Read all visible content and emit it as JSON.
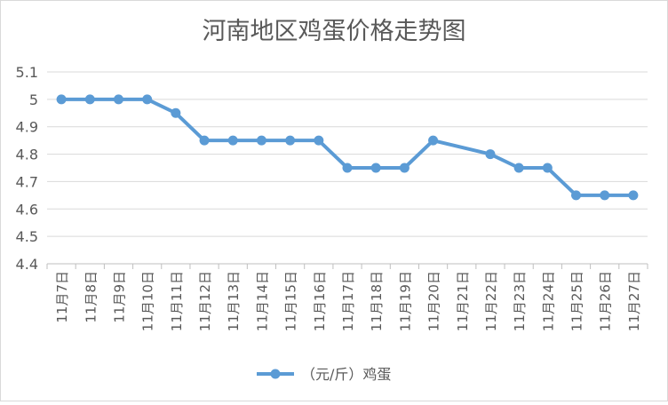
{
  "chart_data": {
    "type": "line",
    "title": "河南地区鸡蛋价格走势图",
    "xlabel": "",
    "ylabel": "",
    "categories": [
      "11月7日",
      "11月8日",
      "11月9日",
      "11月10日",
      "11月11日",
      "11月12日",
      "11月13日",
      "11月14日",
      "11月15日",
      "11月16日",
      "11月17日",
      "11月18日",
      "11月19日",
      "11月20日",
      "11月21日",
      "11月22日",
      "11月23日",
      "11月24日",
      "11月25日",
      "11月26日",
      "11月27日"
    ],
    "series": [
      {
        "name": "（元/斤）鸡蛋",
        "values": [
          5,
          5,
          5,
          5,
          4.95,
          4.85,
          4.85,
          4.85,
          4.85,
          4.85,
          4.75,
          4.75,
          4.75,
          4.85,
          null,
          4.8,
          4.75,
          4.75,
          4.65,
          4.65,
          4.65
        ]
      }
    ],
    "ylim": [
      4.4,
      5.1
    ],
    "yticks": [
      "4.4",
      "4.5",
      "4.6",
      "4.7",
      "4.8",
      "4.9",
      "5",
      "5.1"
    ],
    "grid": true,
    "legend_position": "bottom",
    "series_color": "#5b9bd5"
  }
}
